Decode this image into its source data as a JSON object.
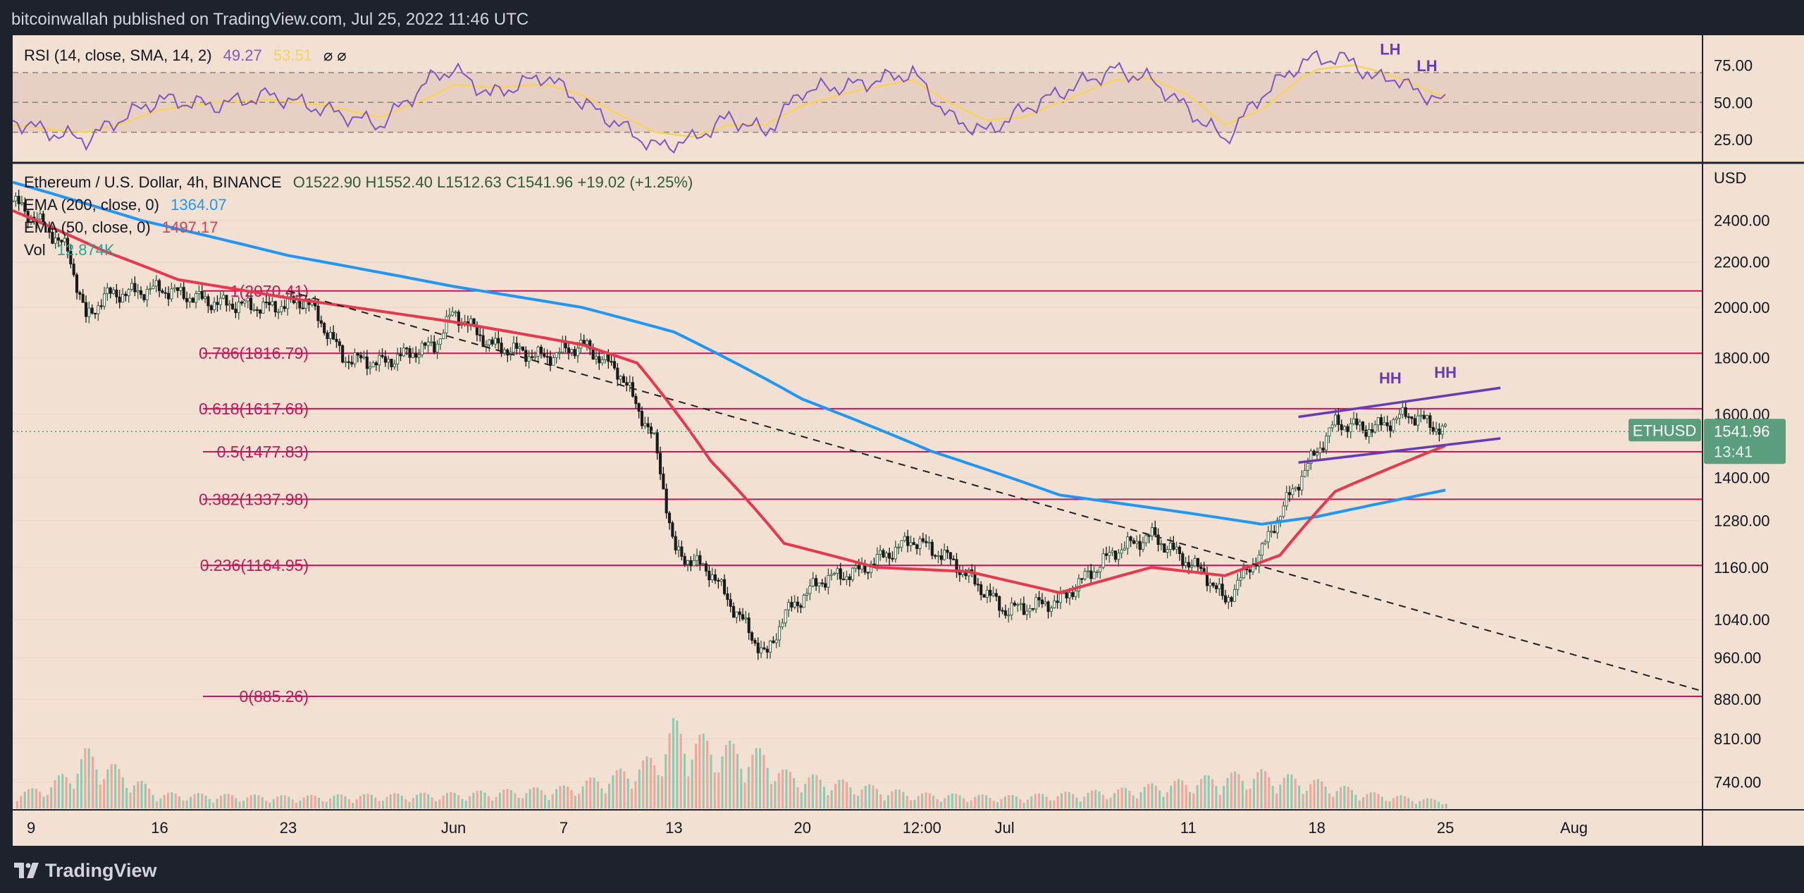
{
  "header": {
    "title": "bitcoinwallah published on TradingView.com, Jul 25, 2022 11:46 UTC"
  },
  "footer": {
    "brand": "TradingView",
    "logo_icon": "tradingview-logo-icon"
  },
  "colors": {
    "background": "#f2e0d2",
    "frame": "#1e222d",
    "ema200": "#2196f3",
    "ema50": "#e53950",
    "fib": "#c2185b",
    "rsi": "#7e57c2",
    "rsi_sma": "#f4d35e",
    "trend_line": "#673ab7",
    "candle_up": "#2e5b3a",
    "candle_down": "#1a1a1a",
    "vol_up": "#8fc9b0",
    "vol_down": "#f0a59a",
    "price_tag": "#5b9e7c"
  },
  "rsi_legend": {
    "label": "RSI (14, close, SMA, 14, 2)",
    "value1": "49.27",
    "value2": "53.51",
    "extra": "⌀ ⌀"
  },
  "price_legend": {
    "symbol_line": "Ethereum / U.S. Dollar, 4h, BINANCE",
    "ohlc": "O1522.90  H1552.40  L1512.63  C1541.96  +19.02 (+1.25%)",
    "ema200_label": "EMA (200, close, 0)",
    "ema200_value": "1364.07",
    "ema50_label": "EMA (50, close, 0)",
    "ema50_value": "1497.17",
    "vol_label": "Vol",
    "vol_value": "12.874K"
  },
  "price_tag": {
    "symbol": "ETHUSD",
    "price": "1541.96",
    "countdown": "13:41"
  },
  "chart_data": {
    "type": "candlestick",
    "title": "Ethereum / U.S. Dollar, 4h, BINANCE",
    "currency_label": "USD",
    "y_scale": "log",
    "ylim": [
      700,
      2700
    ],
    "y_ticks": [
      "2400.00",
      "2200.00",
      "2000.00",
      "1800.00",
      "1600.00",
      "1400.00",
      "1280.00",
      "1160.00",
      "1040.00",
      "960.00",
      "880.00",
      "810.00",
      "740.00"
    ],
    "y_tick_values": [
      2400,
      2200,
      2000,
      1800,
      1600,
      1400,
      1280,
      1160,
      1040,
      960,
      880,
      810,
      740
    ],
    "x_ticks": [
      "9",
      "16",
      "23",
      "Jun",
      "7",
      "13",
      "20",
      "12:00",
      "Jul",
      "11",
      "18",
      "25",
      "Aug"
    ],
    "x_tick_dates": [
      "2022-05-09",
      "2022-05-16",
      "2022-05-23",
      "2022-06-01",
      "2022-06-07",
      "2022-06-13",
      "2022-06-20",
      "2022-06-26 12:00",
      "2022-07-01",
      "2022-07-11",
      "2022-07-18",
      "2022-07-25",
      "2022-08-01"
    ],
    "xlim": [
      "2022-05-08",
      "2022-08-08"
    ],
    "fib_levels": [
      {
        "label": "1(2070.41)",
        "value": 2070.41
      },
      {
        "label": "0.786(1816.79)",
        "value": 1816.79
      },
      {
        "label": "0.618(1617.68)",
        "value": 1617.68
      },
      {
        "label": "0.5(1477.83)",
        "value": 1477.83
      },
      {
        "label": "0.382(1337.98)",
        "value": 1337.98
      },
      {
        "label": "0.236(1164.95)",
        "value": 1164.95
      },
      {
        "label": "0(885.26)",
        "value": 885.26
      }
    ],
    "price_path": {
      "name": "ETHUSD",
      "x": [
        "2022-05-08",
        "2022-05-10",
        "2022-05-11",
        "2022-05-12",
        "2022-05-13",
        "2022-05-16",
        "2022-05-19",
        "2022-05-22",
        "2022-05-24",
        "2022-05-26",
        "2022-05-28",
        "2022-05-31",
        "2022-06-01",
        "2022-06-03",
        "2022-06-06",
        "2022-06-08",
        "2022-06-10",
        "2022-06-12",
        "2022-06-13",
        "2022-06-15",
        "2022-06-16",
        "2022-06-18",
        "2022-06-19",
        "2022-06-21",
        "2022-06-23",
        "2022-06-26",
        "2022-06-28",
        "2022-07-01",
        "2022-07-04",
        "2022-07-07",
        "2022-07-09",
        "2022-07-12",
        "2022-07-13",
        "2022-07-15",
        "2022-07-16",
        "2022-07-18",
        "2022-07-19",
        "2022-07-21",
        "2022-07-23",
        "2022-07-25"
      ],
      "values": [
        2500,
        2350,
        2250,
        1950,
        2050,
        2080,
        2020,
        2000,
        2030,
        1800,
        1780,
        1850,
        1980,
        1850,
        1800,
        1850,
        1750,
        1500,
        1200,
        1150,
        1080,
        960,
        1050,
        1130,
        1150,
        1230,
        1180,
        1060,
        1080,
        1200,
        1240,
        1140,
        1080,
        1200,
        1300,
        1480,
        1570,
        1550,
        1600,
        1542
      ]
    },
    "ema200": {
      "name": "EMA (200, close, 0)",
      "x": [
        "2022-05-08",
        "2022-05-15",
        "2022-05-23",
        "2022-06-01",
        "2022-06-08",
        "2022-06-13",
        "2022-06-20",
        "2022-06-27",
        "2022-07-04",
        "2022-07-11",
        "2022-07-15",
        "2022-07-18",
        "2022-07-25"
      ],
      "values": [
        2600,
        2400,
        2230,
        2090,
        2000,
        1900,
        1650,
        1480,
        1350,
        1300,
        1270,
        1290,
        1364
      ]
    },
    "ema50": {
      "name": "EMA (50, close, 0)",
      "x": [
        "2022-05-08",
        "2022-05-13",
        "2022-05-17",
        "2022-05-23",
        "2022-06-01",
        "2022-06-08",
        "2022-06-11",
        "2022-06-15",
        "2022-06-19",
        "2022-06-24",
        "2022-06-29",
        "2022-07-04",
        "2022-07-09",
        "2022-07-13",
        "2022-07-16",
        "2022-07-19",
        "2022-07-25"
      ],
      "values": [
        2450,
        2250,
        2120,
        2040,
        1940,
        1850,
        1780,
        1450,
        1220,
        1160,
        1150,
        1100,
        1160,
        1140,
        1190,
        1360,
        1497
      ]
    },
    "trend_lines": [
      {
        "name": "descending",
        "x": [
          "2022-05-23",
          "2022-08-08"
        ],
        "values": [
          2070,
          895
        ],
        "style": "dashed"
      },
      {
        "name": "upper-channel",
        "x": [
          "2022-07-17",
          "2022-07-28"
        ],
        "values": [
          1590,
          1690
        ]
      },
      {
        "name": "lower-channel",
        "x": [
          "2022-07-17",
          "2022-07-28"
        ],
        "values": [
          1445,
          1520
        ]
      }
    ],
    "annotations": [
      {
        "label": "HH",
        "x": "2022-07-22",
        "value": 1680
      },
      {
        "label": "HH",
        "x": "2022-07-25",
        "value": 1700
      }
    ],
    "rsi": {
      "name": "RSI (14, close, SMA, 14, 2)",
      "ylim": [
        10,
        95
      ],
      "levels": [
        70,
        50,
        30
      ],
      "y_ticks": [
        "75.00",
        "50.00",
        "25.00"
      ],
      "y_tick_values": [
        75,
        50,
        25
      ],
      "x": [
        "2022-05-08",
        "2022-05-10",
        "2022-05-12",
        "2022-05-14",
        "2022-05-16",
        "2022-05-19",
        "2022-05-22",
        "2022-05-25",
        "2022-05-28",
        "2022-05-31",
        "2022-06-01",
        "2022-06-03",
        "2022-06-06",
        "2022-06-08",
        "2022-06-10",
        "2022-06-12",
        "2022-06-14",
        "2022-06-16",
        "2022-06-18",
        "2022-06-20",
        "2022-06-23",
        "2022-06-26",
        "2022-06-28",
        "2022-06-30",
        "2022-07-02",
        "2022-07-05",
        "2022-07-07",
        "2022-07-09",
        "2022-07-11",
        "2022-07-13",
        "2022-07-15",
        "2022-07-17",
        "2022-07-18",
        "2022-07-20",
        "2022-07-21",
        "2022-07-22",
        "2022-07-23",
        "2022-07-24",
        "2022-07-25"
      ],
      "values": [
        38,
        30,
        25,
        40,
        52,
        48,
        55,
        45,
        35,
        68,
        72,
        55,
        68,
        50,
        35,
        20,
        25,
        40,
        30,
        58,
        62,
        70,
        40,
        30,
        45,
        62,
        72,
        65,
        45,
        25,
        55,
        75,
        80,
        78,
        65,
        68,
        60,
        55,
        49.27
      ],
      "sma_values": [
        35,
        32,
        30,
        36,
        45,
        50,
        52,
        48,
        40,
        55,
        62,
        60,
        62,
        55,
        42,
        30,
        27,
        35,
        35,
        48,
        58,
        65,
        50,
        38,
        40,
        55,
        65,
        66,
        55,
        35,
        45,
        65,
        72,
        75,
        72,
        68,
        64,
        58,
        53.51
      ],
      "annotations": [
        {
          "label": "LH",
          "x": "2022-07-22",
          "value": 82
        },
        {
          "label": "LH",
          "x": "2022-07-24",
          "value": 71
        }
      ]
    },
    "volume": {
      "name": "Vol",
      "x": [
        "2022-05-09",
        "2022-05-10",
        "2022-05-11",
        "2022-05-12",
        "2022-05-16",
        "2022-05-23",
        "2022-06-01",
        "2022-06-07",
        "2022-06-10",
        "2022-06-12",
        "2022-06-13",
        "2022-06-14",
        "2022-06-15",
        "2022-06-18",
        "2022-06-19",
        "2022-06-26",
        "2022-07-01",
        "2022-07-07",
        "2022-07-13",
        "2022-07-15",
        "2022-07-18",
        "2022-07-21",
        "2022-07-25"
      ],
      "values": [
        30,
        40,
        60,
        95,
        25,
        20,
        25,
        35,
        60,
        85,
        140,
        120,
        110,
        90,
        60,
        25,
        20,
        30,
        55,
        60,
        45,
        25,
        12.874
      ]
    }
  }
}
